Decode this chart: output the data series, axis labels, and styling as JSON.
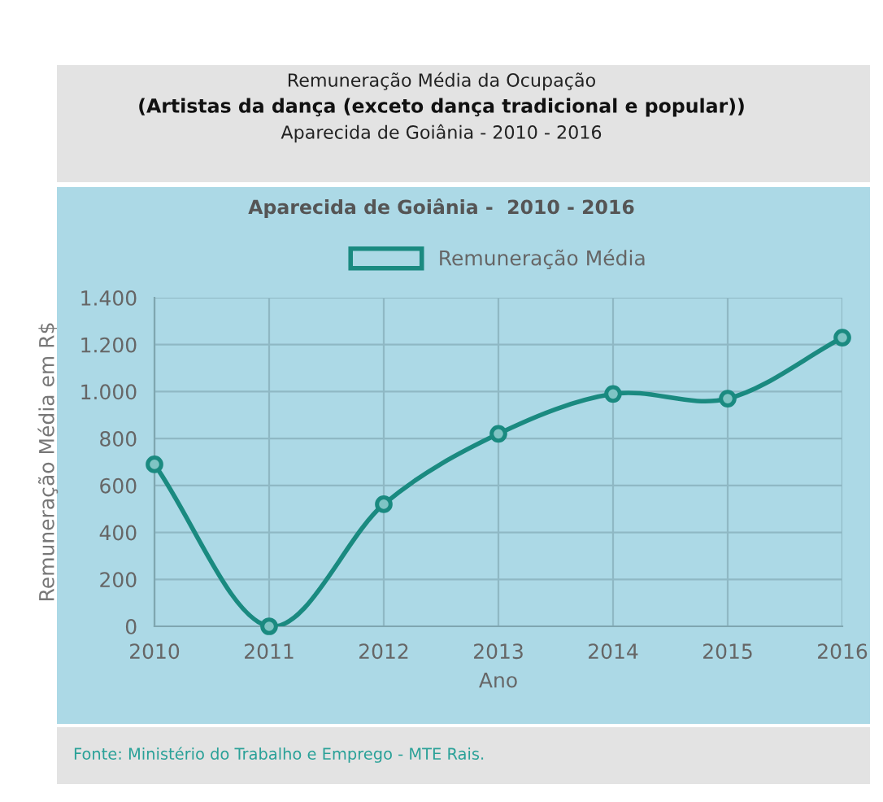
{
  "chart_data": {
    "type": "line",
    "title": "Remuneração Média da Ocupação",
    "subtitle": "(Artistas da dança (exceto dança tradicional e popular))",
    "annotations": [
      "Aparecida de Goiânia - 2010 - 2016",
      "Aparecida de Goiânia -  2010 - 2016",
      "Fonte: Ministério do Trabalho e Emprego - MTE Rais."
    ],
    "categories": [
      "2010",
      "2011",
      "2012",
      "2013",
      "2014",
      "2015",
      "2016"
    ],
    "series": [
      {
        "name": "Remuneração Média",
        "color": "#1a8a80",
        "values": [
          690,
          0,
          520,
          820,
          990,
          970,
          1230
        ]
      }
    ],
    "xlabel": "Ano",
    "ylabel": "Remuneração Média em R$",
    "ylim": [
      0,
      1400
    ],
    "yticks": [
      {
        "value": 0,
        "label": "0"
      },
      {
        "value": 200,
        "label": "200"
      },
      {
        "value": 400,
        "label": "400"
      },
      {
        "value": 600,
        "label": "600"
      },
      {
        "value": 800,
        "label": "800"
      },
      {
        "value": 1000,
        "label": "1.000"
      },
      {
        "value": 1200,
        "label": "1.200"
      },
      {
        "value": 1400,
        "label": "1.400"
      }
    ],
    "grid": true,
    "legend": "top",
    "marker": "circle",
    "line_style": "solid"
  }
}
